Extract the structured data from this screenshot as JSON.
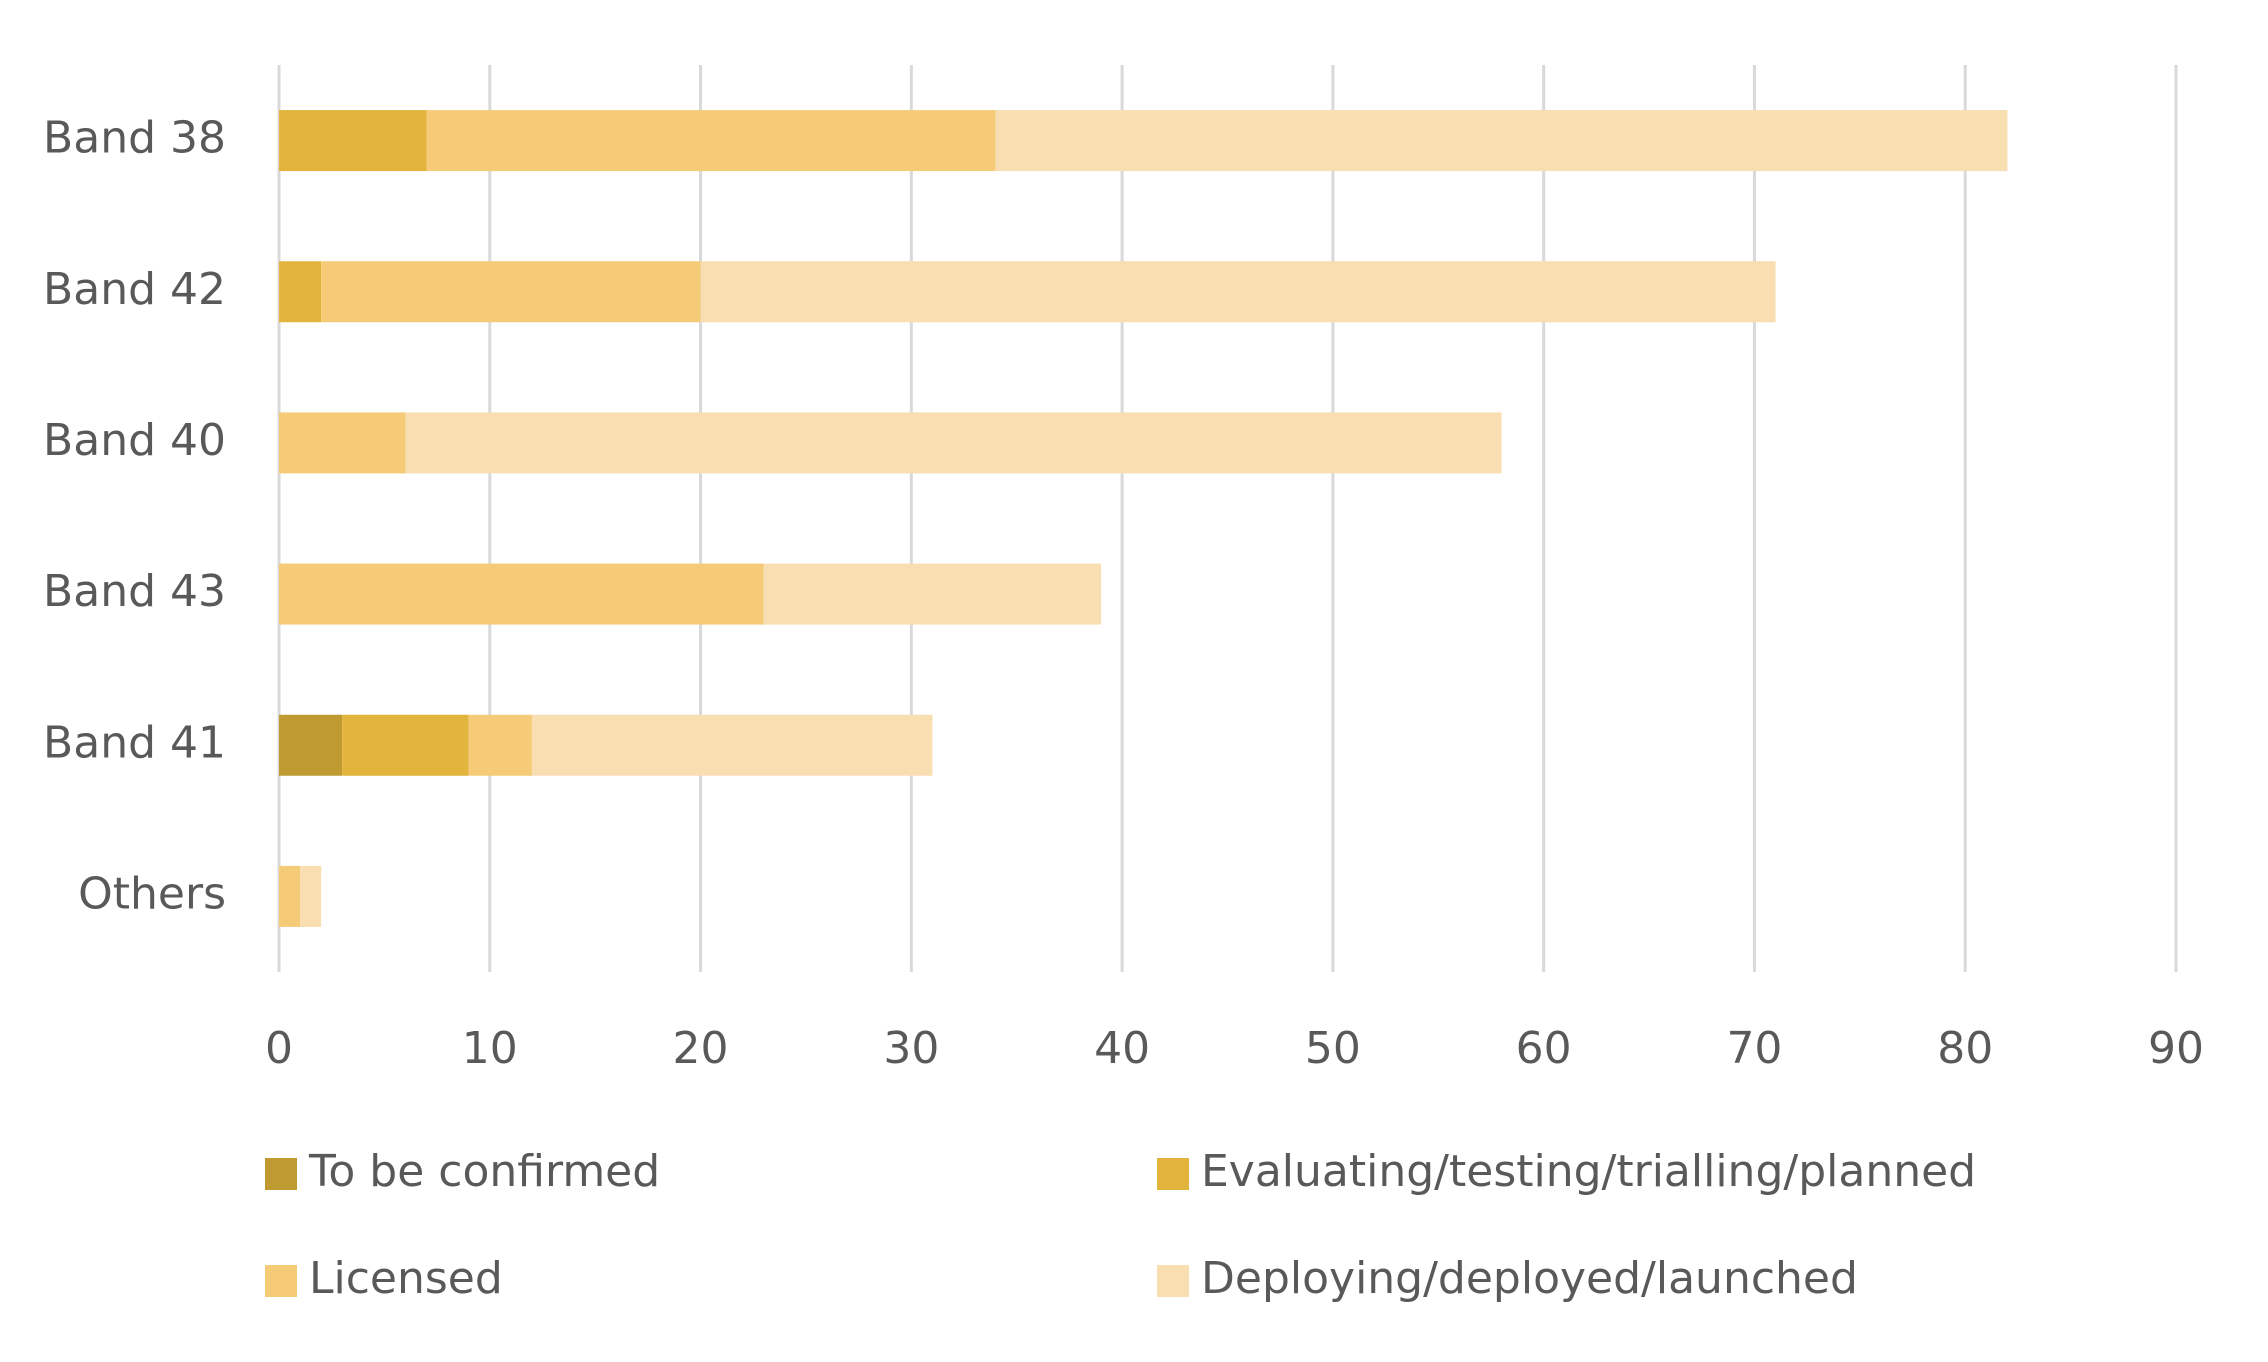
{
  "chart_data": {
    "type": "stacked-bar",
    "orientation": "horizontal",
    "categories": [
      "Band 38",
      "Band 42",
      "Band 40",
      "Band 43",
      "Band 41",
      "Others"
    ],
    "series": [
      {
        "name": "To be confirmed",
        "color": "#bf9a30",
        "values": [
          0,
          0,
          0,
          0,
          3,
          0
        ]
      },
      {
        "name": "Evaluating/testing/trialling/planned",
        "color": "#e3b43c",
        "values": [
          7,
          2,
          0,
          0,
          6,
          0
        ]
      },
      {
        "name": "Licensed",
        "color": "#f5cb78",
        "values": [
          27,
          18,
          6,
          23,
          3,
          1
        ]
      },
      {
        "name": "Deploying/deployed/launched",
        "color": "#f8deb0",
        "values": [
          48,
          51,
          52,
          16,
          19,
          1
        ]
      }
    ],
    "xlim": [
      0,
      90
    ],
    "xticks": [
      0,
      10,
      20,
      30,
      40,
      50,
      60,
      70,
      80,
      90
    ],
    "grid": true,
    "legend": "bottom"
  }
}
